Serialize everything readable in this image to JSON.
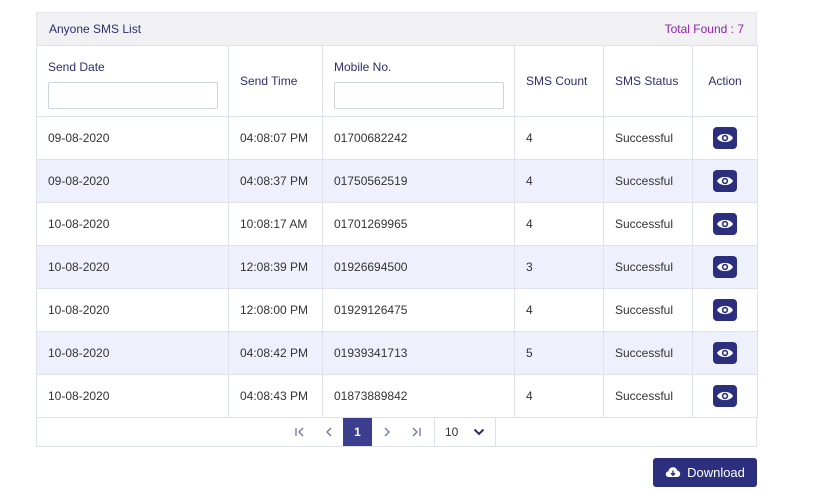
{
  "panel": {
    "title": "Anyone SMS List",
    "total_found": "Total Found : 7"
  },
  "columns": {
    "send_date": "Send Date",
    "send_time": "Send Time",
    "mobile": "Mobile No.",
    "sms_count": "SMS Count",
    "sms_status": "SMS Status",
    "action": "Action"
  },
  "filters": {
    "send_date_value": "",
    "mobile_value": ""
  },
  "rows": [
    {
      "date": "09-08-2020",
      "time": "04:08:07 PM",
      "mobile": "01700682242",
      "count": "4",
      "status": "Successful"
    },
    {
      "date": "09-08-2020",
      "time": "04:08:37 PM",
      "mobile": "01750562519",
      "count": "4",
      "status": "Successful"
    },
    {
      "date": "10-08-2020",
      "time": "10:08:17 AM",
      "mobile": "01701269965",
      "count": "4",
      "status": "Successful"
    },
    {
      "date": "10-08-2020",
      "time": "12:08:39 PM",
      "mobile": "01926694500",
      "count": "3",
      "status": "Successful"
    },
    {
      "date": "10-08-2020",
      "time": "12:08:00 PM",
      "mobile": "01929126475",
      "count": "4",
      "status": "Successful"
    },
    {
      "date": "10-08-2020",
      "time": "04:08:42 PM",
      "mobile": "01939341713",
      "count": "5",
      "status": "Successful"
    },
    {
      "date": "10-08-2020",
      "time": "04:08:43 PM",
      "mobile": "01873889842",
      "count": "4",
      "status": "Successful"
    }
  ],
  "pagination": {
    "current_page": "1",
    "page_size": "10"
  },
  "download": {
    "label": "Download"
  },
  "icons": {
    "view": "eye-icon",
    "download": "cloud-download-icon",
    "first": "first-page-icon",
    "prev": "prev-page-icon",
    "next": "next-page-icon",
    "last": "last-page-icon",
    "dropdown": "chevron-down-icon"
  },
  "colors": {
    "accent": "#2b2f7e",
    "total_found": "#8e24aa",
    "row_alt": "#eef1fb"
  }
}
